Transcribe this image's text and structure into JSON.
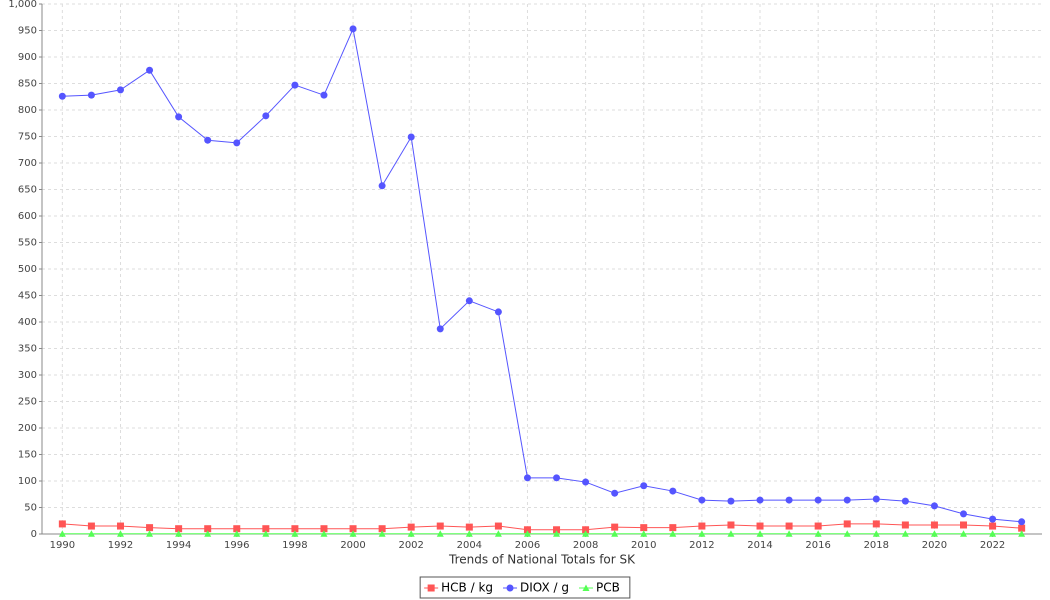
{
  "chart_data": {
    "type": "line",
    "x_label": "Trends of National Totals for SK",
    "x": [
      1990,
      1991,
      1992,
      1993,
      1994,
      1995,
      1996,
      1997,
      1998,
      1999,
      2000,
      2001,
      2002,
      2003,
      2004,
      2005,
      2006,
      2007,
      2008,
      2009,
      2010,
      2011,
      2012,
      2013,
      2014,
      2015,
      2016,
      2017,
      2018,
      2019,
      2020,
      2021,
      2022,
      2023
    ],
    "series": [
      {
        "name": "HCB / kg",
        "color": "#ff5555",
        "marker": "square",
        "values": [
          19,
          15,
          15,
          12,
          10,
          10,
          10,
          10,
          10,
          10,
          10,
          10,
          13,
          15,
          13,
          15,
          8,
          8,
          8,
          13,
          12,
          12,
          15,
          17,
          15,
          15,
          15,
          19,
          19,
          17,
          17,
          17,
          15,
          11
        ]
      },
      {
        "name": "DIOX / g",
        "color": "#5555ff",
        "marker": "circle",
        "values": [
          826,
          828,
          838,
          875,
          787,
          743,
          738,
          789,
          847,
          828,
          953,
          657,
          749,
          387,
          440,
          419,
          106,
          106,
          98,
          77,
          91,
          81,
          64,
          62,
          64,
          64,
          64,
          64,
          66,
          62,
          53,
          38,
          28,
          23
        ]
      },
      {
        "name": "PCB",
        "color": "#55ff55",
        "marker": "triangle",
        "values": [
          0.5,
          0.5,
          0.5,
          0.5,
          0.5,
          0.5,
          0.5,
          0.5,
          0.5,
          0.5,
          0.5,
          0.5,
          0.5,
          0.5,
          0.5,
          0.5,
          0.5,
          0.5,
          0.5,
          0.5,
          0.5,
          0.5,
          0.5,
          0.5,
          0.5,
          0.5,
          0.5,
          0.5,
          0.5,
          0.5,
          0.5,
          0.5,
          0.5,
          0.5
        ]
      }
    ],
    "xlim": [
      1989.3,
      2023.7
    ],
    "xticks": [
      1990,
      1992,
      1994,
      1996,
      1998,
      2000,
      2002,
      2004,
      2006,
      2008,
      2010,
      2012,
      2014,
      2016,
      2018,
      2020,
      2022
    ],
    "ylim": [
      0,
      1000
    ],
    "yticks": [
      0,
      50,
      100,
      150,
      200,
      250,
      300,
      350,
      400,
      450,
      500,
      550,
      600,
      650,
      700,
      750,
      800,
      850,
      900,
      950,
      {
        "value": 1000,
        "label": "1,000"
      }
    ],
    "grid": true,
    "legend": "bottom"
  }
}
